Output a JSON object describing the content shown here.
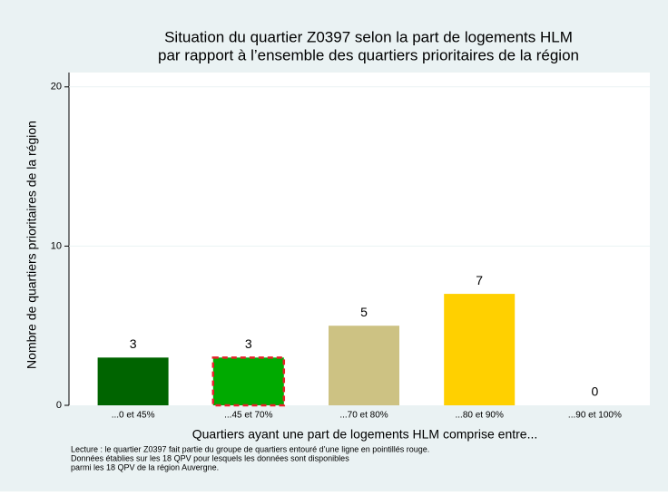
{
  "chart_data": {
    "type": "bar",
    "title": [
      "Situation du quartier Z0397 selon la part de logements HLM",
      "par rapport à l’ensemble des quartiers prioritaires de la région"
    ],
    "x_label": "Quartiers ayant une part de logements HLM comprise entre...",
    "y_label": "Nombre de quartiers prioritaires de la région",
    "categories": [
      "...0 et 45%",
      "...45 et 70%",
      "...70 et 80%",
      "...80 et 90%",
      "...90 et 100%"
    ],
    "values": [
      3,
      3,
      5,
      7,
      0
    ],
    "colors": [
      "#006400",
      "#00aa00",
      "#cdc283",
      "#ffd000",
      "#ff9900"
    ],
    "highlight_index": 1,
    "highlight_color": "#e8202a",
    "ylim": [
      0,
      20.9
    ],
    "yticks": [
      0,
      10,
      20
    ],
    "grid": true,
    "notes": [
      "Lecture : le quartier Z0397 fait partie du groupe de quartiers entouré d’une ligne en pointillés rouge.",
      "Données établies sur les 18 QPV pour lesquels les données sont disponibles",
      "parmi les 18 QPV de la région Auvergne."
    ]
  }
}
